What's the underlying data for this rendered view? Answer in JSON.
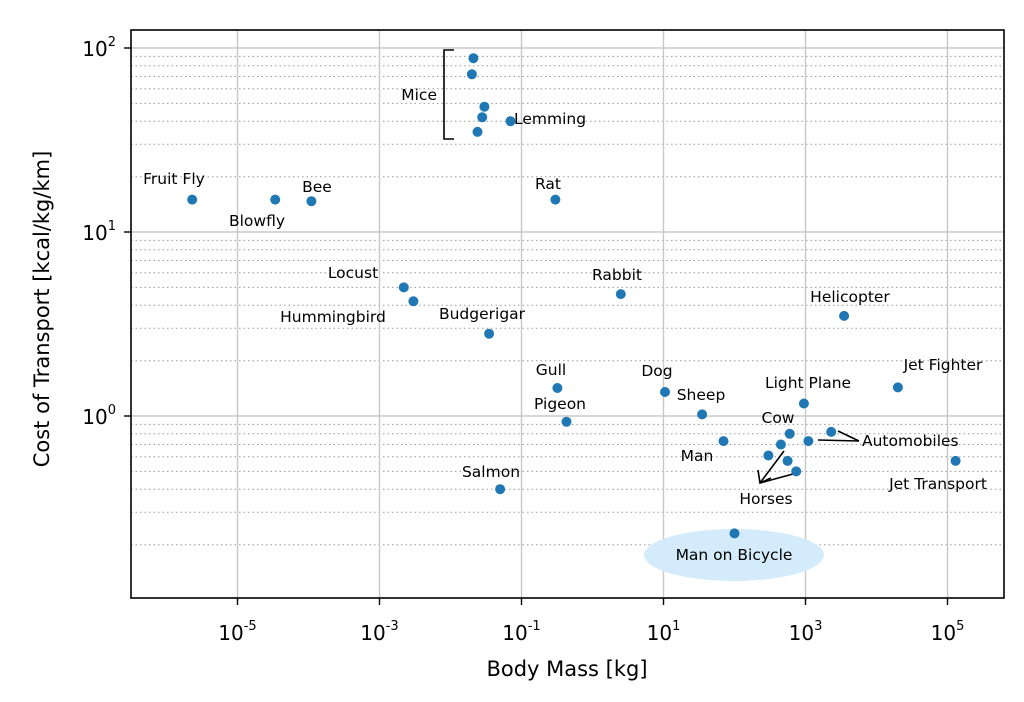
{
  "chart_data": {
    "type": "scatter",
    "xscale": "log",
    "yscale": "log",
    "xlabel": "Body Mass [kg]",
    "ylabel": "Cost of Transport [kcal/kg/km]",
    "xlim_log10": [
      -6.6,
      5.7
    ],
    "ylim_log10": [
      -0.99,
      2.09
    ],
    "x_ticks": [
      {
        "base": "10",
        "exp": "-5",
        "log10": -5
      },
      {
        "base": "10",
        "exp": "-3",
        "log10": -3
      },
      {
        "base": "10",
        "exp": "-1",
        "log10": -1
      },
      {
        "base": "10",
        "exp": "1",
        "log10": 1
      },
      {
        "base": "10",
        "exp": "3",
        "log10": 3
      },
      {
        "base": "10",
        "exp": "5",
        "log10": 5
      }
    ],
    "y_ticks": [
      {
        "label": "10",
        "exp": "2",
        "log10": 2
      },
      {
        "label": "10",
        "exp": "1",
        "log10": 1
      },
      {
        "label": "10",
        "exp": "0",
        "log10": 0
      }
    ],
    "point_color": "#1f77b4",
    "points": [
      {
        "x": 2.3e-06,
        "y": 15
      },
      {
        "x": 3.4e-05,
        "y": 15
      },
      {
        "x": 0.00011,
        "y": 14.7
      },
      {
        "x": 0.0022,
        "y": 5.0
      },
      {
        "x": 0.003,
        "y": 4.2
      },
      {
        "x": 0.021,
        "y": 88
      },
      {
        "x": 0.02,
        "y": 72
      },
      {
        "x": 0.03,
        "y": 48
      },
      {
        "x": 0.028,
        "y": 42
      },
      {
        "x": 0.024,
        "y": 35
      },
      {
        "x": 0.07,
        "y": 40
      },
      {
        "x": 0.3,
        "y": 15
      },
      {
        "x": 0.035,
        "y": 2.8
      },
      {
        "x": 2.5,
        "y": 4.6
      },
      {
        "x": 0.05,
        "y": 0.4
      },
      {
        "x": 0.32,
        "y": 1.42
      },
      {
        "x": 0.43,
        "y": 0.93
      },
      {
        "x": 10.5,
        "y": 1.35
      },
      {
        "x": 35,
        "y": 1.02
      },
      {
        "x": 70,
        "y": 0.73
      },
      {
        "x": 100,
        "y": 0.23
      },
      {
        "x": 950,
        "y": 1.17
      },
      {
        "x": 600,
        "y": 0.8
      },
      {
        "x": 450,
        "y": 0.7
      },
      {
        "x": 300,
        "y": 0.61
      },
      {
        "x": 560,
        "y": 0.57
      },
      {
        "x": 740,
        "y": 0.5
      },
      {
        "x": 1100,
        "y": 0.73
      },
      {
        "x": 2300,
        "y": 0.82
      },
      {
        "x": 3500,
        "y": 3.5
      },
      {
        "x": 20000,
        "y": 1.43
      },
      {
        "x": 130000,
        "y": 0.57
      }
    ],
    "labels": [
      {
        "text": "Fruit Fly"
      },
      {
        "text": "Blowfly"
      },
      {
        "text": "Bee"
      },
      {
        "text": "Mice"
      },
      {
        "text": "Lemming"
      },
      {
        "text": "Rat"
      },
      {
        "text": "Locust"
      },
      {
        "text": "Hummingbird"
      },
      {
        "text": "Budgerigar"
      },
      {
        "text": "Rabbit"
      },
      {
        "text": "Helicopter"
      },
      {
        "text": "Gull"
      },
      {
        "text": "Pigeon"
      },
      {
        "text": "Dog"
      },
      {
        "text": "Sheep"
      },
      {
        "text": "Light Plane"
      },
      {
        "text": "Jet Fighter"
      },
      {
        "text": "Cow"
      },
      {
        "text": "Automobiles"
      },
      {
        "text": "Man"
      },
      {
        "text": "Horses"
      },
      {
        "text": "Jet Transport"
      },
      {
        "text": "Salmon"
      },
      {
        "text": "Man on Bicycle"
      }
    ],
    "highlight_fill": "#d3ebfa"
  }
}
